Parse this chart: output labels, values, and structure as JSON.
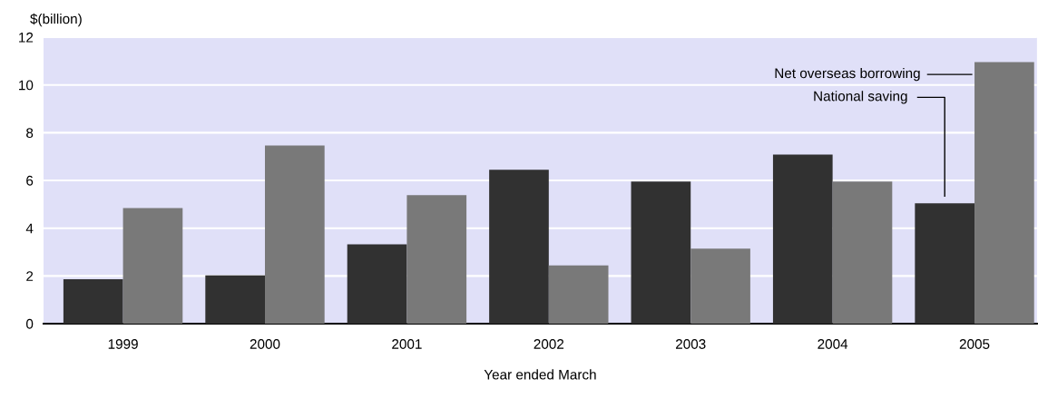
{
  "chart_data": {
    "type": "bar",
    "ylabel": "$(billion)",
    "xlabel": "Year ended March",
    "categories": [
      "1999",
      "2000",
      "2001",
      "2002",
      "2003",
      "2004",
      "2005"
    ],
    "series": [
      {
        "name": "National saving",
        "color": "#313131",
        "values": [
          1.86,
          2.02,
          3.32,
          6.45,
          5.95,
          7.08,
          5.04
        ]
      },
      {
        "name": "Net overseas borrowing",
        "color": "#797979",
        "values": [
          4.84,
          7.46,
          5.38,
          2.44,
          3.14,
          5.95,
          10.96
        ]
      }
    ],
    "ylim": [
      0,
      12
    ],
    "yticks": [
      0,
      2,
      4,
      6,
      8,
      10,
      12
    ],
    "grid": "y",
    "legend": false
  }
}
